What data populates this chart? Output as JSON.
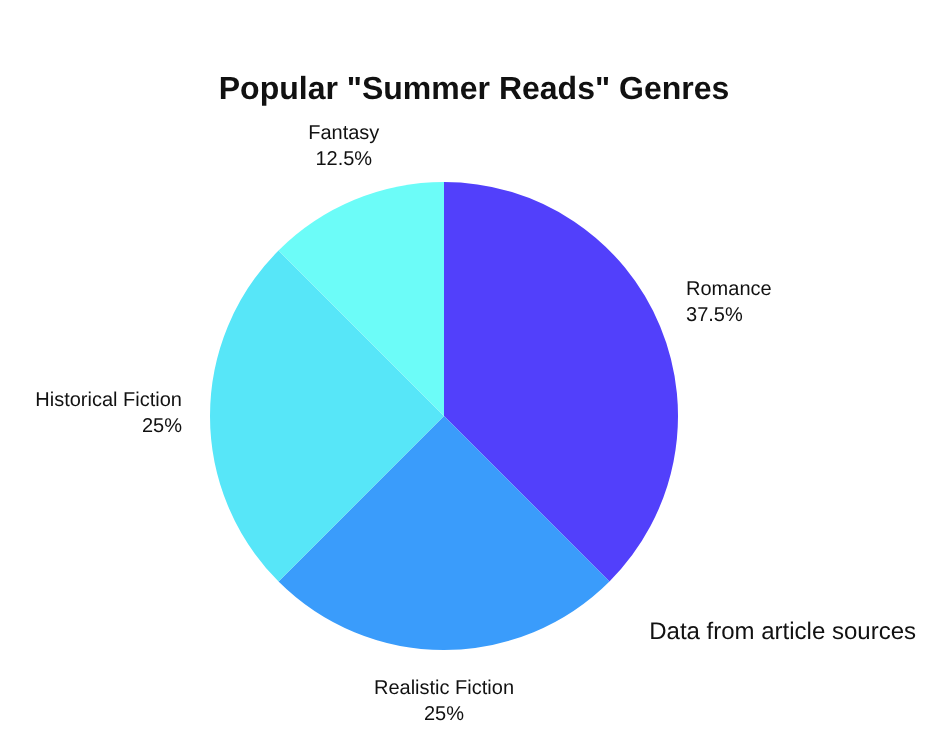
{
  "chart_data": {
    "type": "pie",
    "title": "Popular \"Summer Reads\" Genres",
    "categories": [
      "Romance",
      "Realistic Fiction",
      "Historical Fiction",
      "Fantasy"
    ],
    "values": [
      37.5,
      25,
      25,
      12.5
    ],
    "value_labels": [
      "37.5%",
      "25%",
      "25%",
      "12.5%"
    ],
    "colors": [
      "#5240fb",
      "#3a9cfb",
      "#57e6f8",
      "#6cfcf8"
    ],
    "legend": false,
    "annotations": [
      "Data from article sources"
    ]
  }
}
